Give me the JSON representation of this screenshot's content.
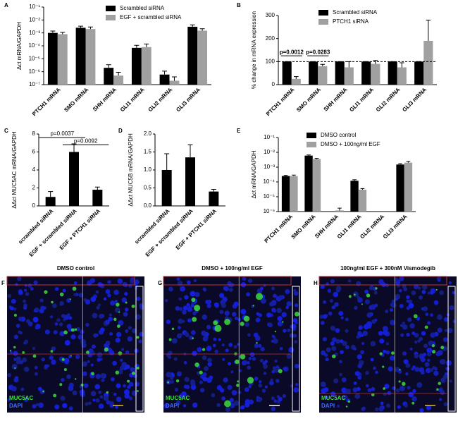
{
  "chart_data": [
    {
      "type": "bar",
      "label": "A",
      "ylabel": "Δct mRNA/GAPDH",
      "log": true,
      "categories": [
        "PTCH1 mRNA",
        "SMO mRNA",
        "SHH mRNA",
        "GLI1 mRNA",
        "GLI2 mRNA",
        "GLI3 mRNA"
      ],
      "series": [
        {
          "name": "Scrambled siRNA",
          "color": "#000000",
          "values": [
            0.001,
            0.0025,
            2e-06,
            7e-05,
            6e-07,
            0.003
          ],
          "errors": [
            0.0004,
            0.0008,
            1.5e-06,
            4e-05,
            5e-07,
            0.0012
          ]
        },
        {
          "name": "EGF + scrambled siRNA",
          "color": "#a0a0a0",
          "values": [
            0.0008,
            0.002,
            5e-07,
            8e-05,
            2e-07,
            0.0015
          ],
          "errors": [
            0.0003,
            0.0009,
            4e-07,
            6e-05,
            2e-07,
            0.0006
          ]
        }
      ],
      "ylim": [
        1e-07,
        0.1
      ],
      "yticks": [
        {
          "value": 1e-07,
          "label": "10⁻⁷"
        },
        {
          "value": 1e-06,
          "label": "10⁻⁶"
        },
        {
          "value": 1e-05,
          "label": "10⁻⁵"
        },
        {
          "value": 0.0001,
          "label": "10⁻⁴"
        },
        {
          "value": 0.001,
          "label": "10⁻³"
        },
        {
          "value": 0.01,
          "label": "10⁻²"
        },
        {
          "value": 0.1,
          "label": "10⁻¹"
        }
      ]
    },
    {
      "type": "bar",
      "label": "B",
      "ylabel": "% change in mRNA expression",
      "log": false,
      "categories": [
        "PTCH1 mRNA",
        "SMO mRNA",
        "SHH mRNA",
        "GLI1 mRNA",
        "GLI2 mRNA",
        "GLI3 mRNA"
      ],
      "series": [
        {
          "name": "Scrambled siRNA",
          "color": "#000000",
          "values": [
            100,
            100,
            100,
            100,
            100,
            100
          ],
          "errors": [
            0,
            0,
            0,
            0,
            0,
            0
          ]
        },
        {
          "name": "PTCH1 siRNA",
          "color": "#a0a0a0",
          "values": [
            25,
            80,
            75,
            90,
            75,
            190
          ],
          "errors": [
            10,
            8,
            25,
            15,
            20,
            90
          ]
        }
      ],
      "reference_line": 100,
      "annotations": [
        "p=0.0012",
        "p=0.0283"
      ],
      "ylim": [
        0,
        300
      ],
      "yticks": [
        0,
        100,
        200,
        300
      ]
    },
    {
      "type": "bar",
      "label": "C",
      "ylabel": "ΔΔct MUC5AC mRNA/GAPDH",
      "log": false,
      "categories": [
        "scrambled siRNA",
        "EGF + scrambled siRNA",
        "EGF + PTCH1 siRNA"
      ],
      "values": [
        1,
        6,
        1.8
      ],
      "errors": [
        0.6,
        0.9,
        0.3
      ],
      "color": "#000000",
      "annotations": [
        "p=0.0037",
        "p=0.0092"
      ],
      "ylim": [
        0,
        8
      ],
      "yticks": [
        0,
        2,
        4,
        6,
        8
      ]
    },
    {
      "type": "bar",
      "label": "D",
      "ylabel": "ΔΔct MUC5B mRNA/GAPDH",
      "log": false,
      "categories": [
        "scrambled siRNA",
        "EGF + scrambled siRNA",
        "EGF + PTCH1 siRNA"
      ],
      "values": [
        1.0,
        1.35,
        0.4
      ],
      "errors": [
        0.45,
        0.35,
        0.06
      ],
      "color": "#000000",
      "ylim": [
        0,
        2
      ],
      "yticks": [
        {
          "value": 0,
          "label": "0.0"
        },
        0.5,
        {
          "value": 1,
          "label": "1.0"
        },
        1.5,
        {
          "value": 2,
          "label": "2.0"
        }
      ]
    },
    {
      "type": "bar",
      "label": "E",
      "ylabel": "Δct mRNA/GAPDH",
      "log": true,
      "categories": [
        "PTCH1 mRNA",
        "SMO mRNA",
        "SHH mRNA",
        "GLI1 mRNA",
        "GLI2 mRNA",
        "GLI3 mRNA"
      ],
      "series": [
        {
          "name": "DMSO control",
          "color": "#000000",
          "values": [
            0.00025,
            0.006,
            null,
            0.00012,
            null,
            0.0015
          ],
          "errors": [
            3e-05,
            0.0006,
            null,
            2e-05,
            null,
            0.0002
          ]
        },
        {
          "name": "DMSO + 100ng/ml EGF",
          "color": "#a0a0a0",
          "values": [
            0.00025,
            0.0035,
            1.2e-06,
            3e-05,
            null,
            0.002
          ],
          "errors": [
            4e-05,
            0.0004,
            5e-07,
            6e-06,
            null,
            0.0004
          ]
        }
      ],
      "ylim": [
        1e-06,
        0.1
      ],
      "yticks": [
        {
          "value": 1e-06,
          "label": "10⁻⁶"
        },
        {
          "value": 1e-05,
          "label": "10⁻⁵"
        },
        {
          "value": 0.0001,
          "label": "10⁻⁴"
        },
        {
          "value": 0.001,
          "label": "10⁻³"
        },
        {
          "value": 0.01,
          "label": "10⁻²"
        },
        {
          "value": 0.1,
          "label": "10⁻¹"
        }
      ]
    }
  ],
  "images": [
    {
      "label": "F",
      "title": "DMSO control",
      "stains": [
        "MUC5AC",
        "DAPI"
      ]
    },
    {
      "label": "G",
      "title": "DMSO + 100ng/ml EGF",
      "stains": [
        "MUC5AC",
        "DAPI"
      ]
    },
    {
      "label": "H",
      "title": "100ng/ml EGF + 300nM Vismodegib",
      "stains": [
        "MUC5AC",
        "DAPI"
      ]
    }
  ]
}
